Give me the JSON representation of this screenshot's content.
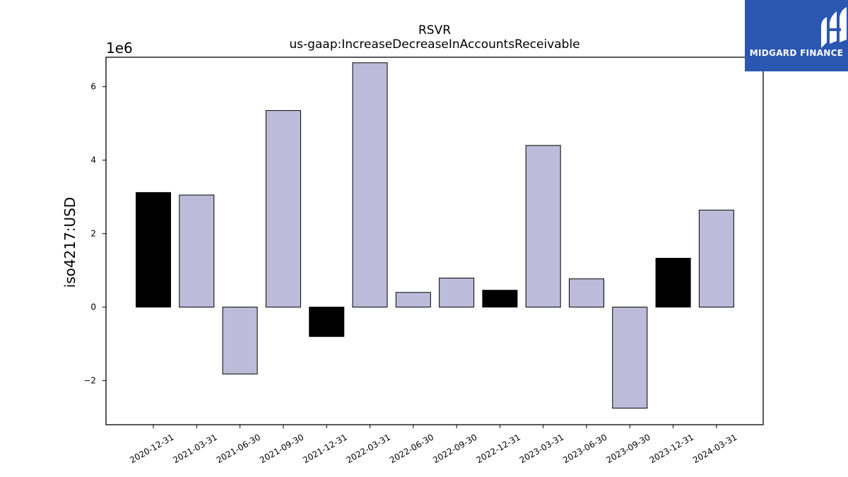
{
  "chart_data": {
    "type": "bar",
    "title": "RSVR",
    "subtitle": "us-gaap:IncreaseDecreaseInAccountsReceivable",
    "ylabel": "iso4217:USD",
    "xlabel": "",
    "y_multiplier_label": "1e6",
    "ylim": [
      -3200000,
      6800000
    ],
    "yticks": [
      -2000000,
      0,
      2000000,
      4000000,
      6000000
    ],
    "ytick_labels": [
      "−2",
      "0",
      "2",
      "4",
      "6"
    ],
    "categories": [
      "2020-12-31",
      "2021-03-31",
      "2021-06-30",
      "2021-09-30",
      "2021-12-31",
      "2022-03-31",
      "2022-06-30",
      "2022-09-30",
      "2022-12-31",
      "2023-03-31",
      "2023-06-30",
      "2023-09-30",
      "2023-12-31",
      "2024-03-31"
    ],
    "values": [
      3120000,
      3050000,
      -1820000,
      5350000,
      -800000,
      6650000,
      400000,
      790000,
      460000,
      4400000,
      770000,
      -2750000,
      1330000,
      2640000
    ],
    "bar_colors": [
      "#000000",
      "#bdbbda",
      "#bdbbda",
      "#bdbbda",
      "#000000",
      "#bdbbda",
      "#bdbbda",
      "#bdbbda",
      "#000000",
      "#bdbbda",
      "#bdbbda",
      "#bdbbda",
      "#000000",
      "#bdbbda"
    ],
    "grid": false,
    "legend": "none"
  },
  "logo": {
    "text": "MIDGARD FINANCE",
    "background": "#2b57b0"
  }
}
